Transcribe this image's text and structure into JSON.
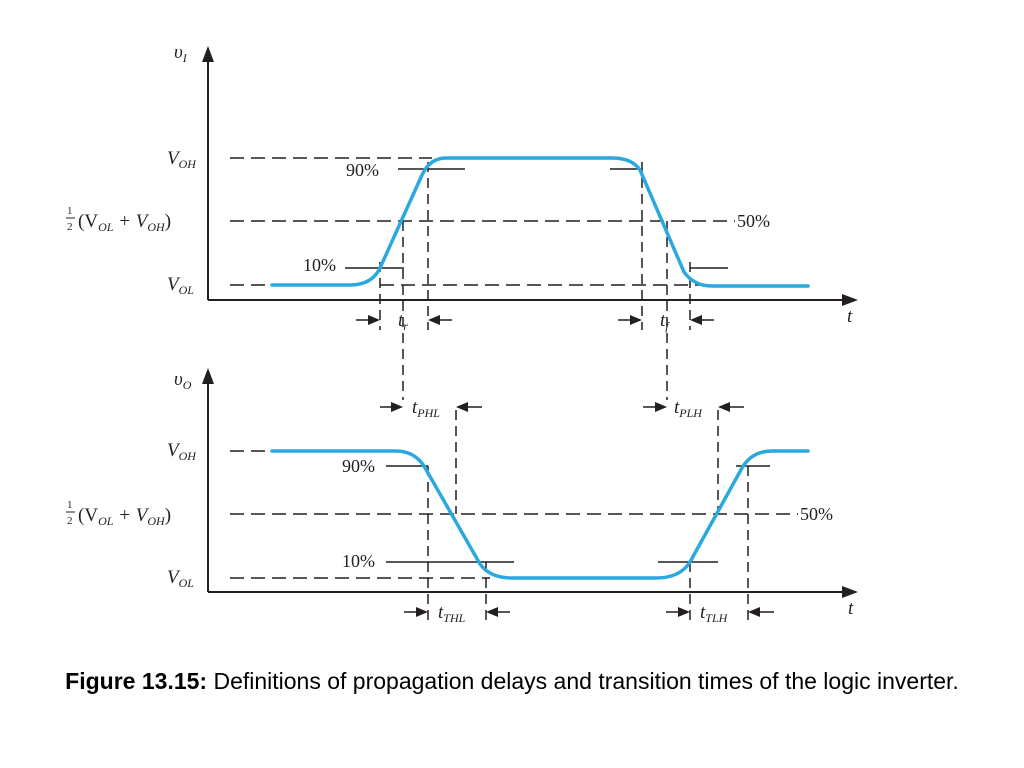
{
  "diagram": {
    "input": {
      "axis_label": "υ",
      "axis_sub": "I",
      "level_high": "V",
      "level_high_sub": "OH",
      "level_mid_frac": "1/2",
      "level_mid_text": "(V",
      "level_mid_sub1": "OL",
      "level_mid_plus": " + V",
      "level_mid_sub2": "OH",
      "level_mid_close": ")",
      "level_low": "V",
      "level_low_sub": "OL",
      "pct_90": "90%",
      "pct_50": "50%",
      "pct_10": "10%",
      "time_label": "t",
      "rise_label": "t",
      "rise_sub": "r",
      "fall_label": "t",
      "fall_sub": "f"
    },
    "output": {
      "axis_label": "υ",
      "axis_sub": "O",
      "level_high": "V",
      "level_high_sub": "OH",
      "level_mid_frac": "1/2",
      "level_mid_text": "(V",
      "level_mid_sub1": "OL",
      "level_mid_plus": " + V",
      "level_mid_sub2": "OH",
      "level_mid_close": ")",
      "level_low": "V",
      "level_low_sub": "OL",
      "pct_90": "90%",
      "pct_50": "50%",
      "pct_10": "10%",
      "time_label": "t",
      "phl_label": "t",
      "phl_sub": "PHL",
      "plh_label": "t",
      "plh_sub": "PLH",
      "thl_label": "t",
      "thl_sub": "THL",
      "tlh_label": "t",
      "tlh_sub": "TLH"
    },
    "waveform_color": "#29a9e0"
  },
  "caption": {
    "label": "Figure 13.15:",
    "text": " Definitions of propagation delays and transition times of the logic inverter."
  }
}
